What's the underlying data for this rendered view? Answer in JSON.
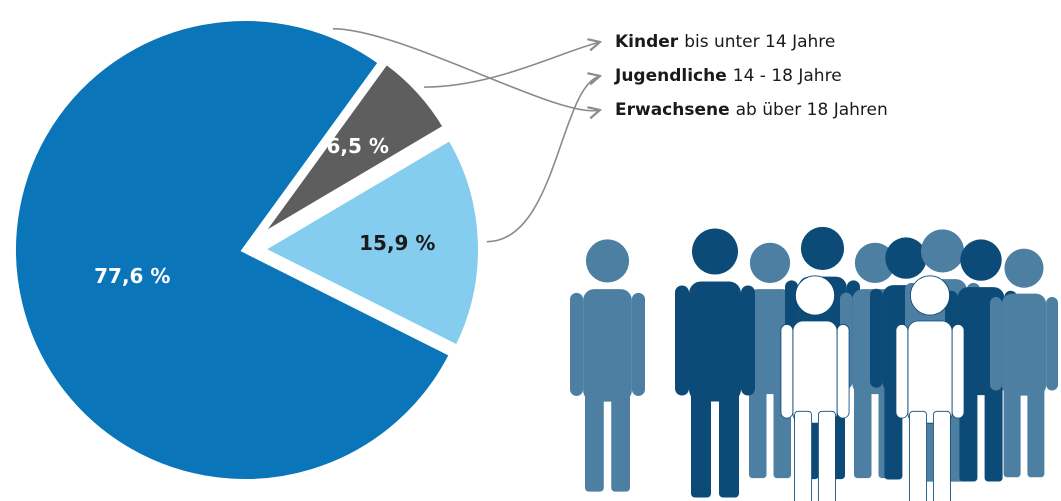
{
  "chart_data": {
    "type": "pie",
    "categories": [
      "Kinder",
      "Jugendliche",
      "Erwachsene"
    ],
    "category_details": [
      "bis unter 14 Jahre",
      "14 - 18 Jahre",
      "ab über 18 Jahren"
    ],
    "values": [
      6.5,
      15.9,
      77.6
    ],
    "value_labels": [
      "6,5 %",
      "15,9 %",
      "77,6 %"
    ],
    "colors": [
      "#5e5e5e",
      "#85cdee",
      "#0a75b9"
    ]
  }
}
